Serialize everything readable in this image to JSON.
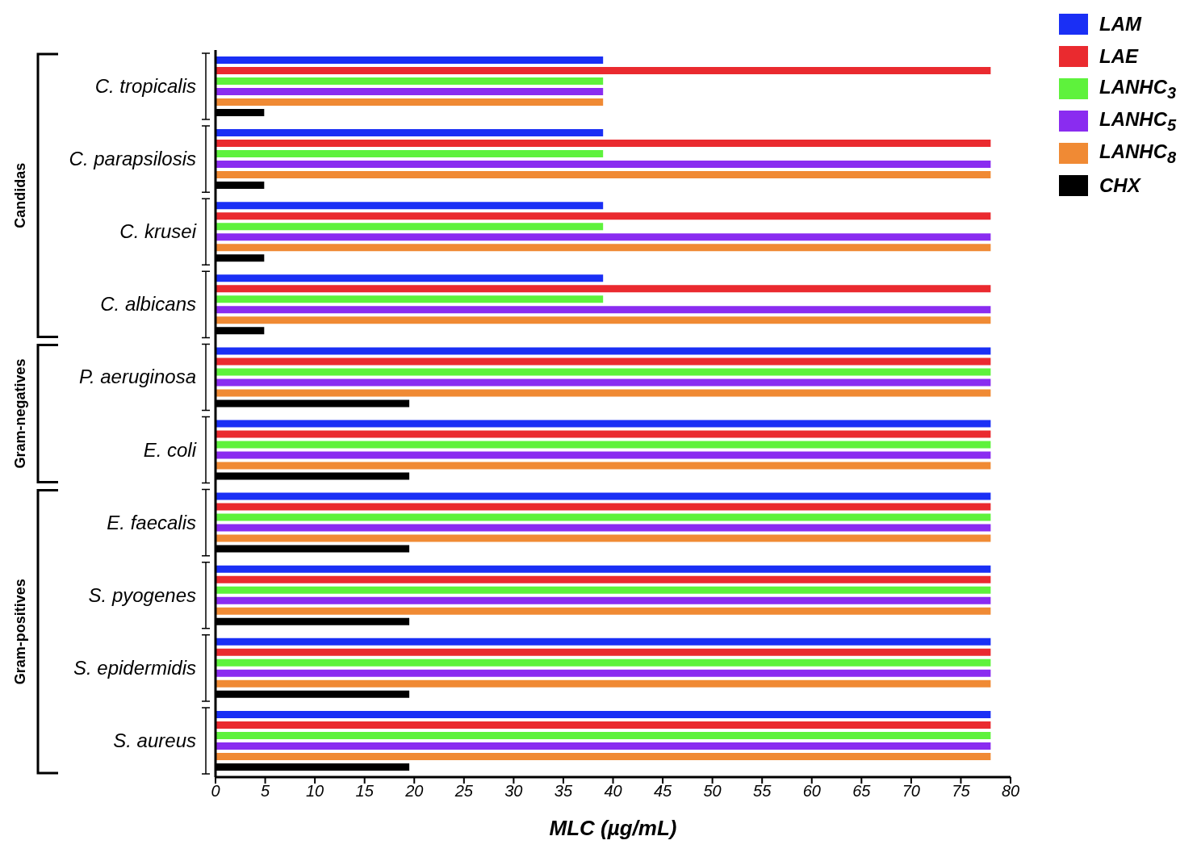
{
  "chart_data": {
    "type": "bar",
    "orientation": "horizontal",
    "xlabel": "MLC (µg/mL)",
    "categories": [
      "C. tropicalis",
      "C. parapsilosis",
      "C. krusei",
      "C. albicans",
      "P. aeruginosa",
      "E. coli",
      "E. faecalis",
      "S. pyogenes",
      "S. epidermidis",
      "S. aureus"
    ],
    "series": [
      {
        "name": "LAM",
        "color": "#1a2ff5",
        "values": [
          39,
          39,
          39,
          39,
          78,
          78,
          78,
          78,
          78,
          78
        ]
      },
      {
        "name": "LAE",
        "color": "#ea2a2f",
        "values": [
          78,
          78,
          78,
          78,
          78,
          78,
          78,
          78,
          78,
          78
        ]
      },
      {
        "name": "LANHC$_{3}$",
        "color": "#5ef23c",
        "values": [
          39,
          39,
          39,
          39,
          78,
          78,
          78,
          78,
          78,
          78
        ]
      },
      {
        "name": "LANHC$_{5}$",
        "color": "#8a2cf0",
        "values": [
          39,
          78,
          78,
          78,
          78,
          78,
          78,
          78,
          78,
          78
        ]
      },
      {
        "name": "LANHC$_{8}$",
        "color": "#f08a34",
        "values": [
          39,
          78,
          78,
          78,
          78,
          78,
          78,
          78,
          78,
          78
        ]
      },
      {
        "name": "CHX",
        "color": "#000000",
        "values": [
          4.9,
          4.9,
          4.9,
          4.9,
          19.5,
          19.5,
          19.5,
          19.5,
          19.5,
          19.5
        ]
      }
    ],
    "xlim": [
      0,
      80
    ],
    "xticks": [
      0,
      5,
      10,
      15,
      20,
      25,
      30,
      35,
      40,
      45,
      50,
      55,
      60,
      65,
      70,
      75,
      80
    ],
    "annotations": [
      "Candidas",
      "Gram-negatives",
      "Gram-positives"
    ],
    "legend": "top right",
    "grid": false
  }
}
